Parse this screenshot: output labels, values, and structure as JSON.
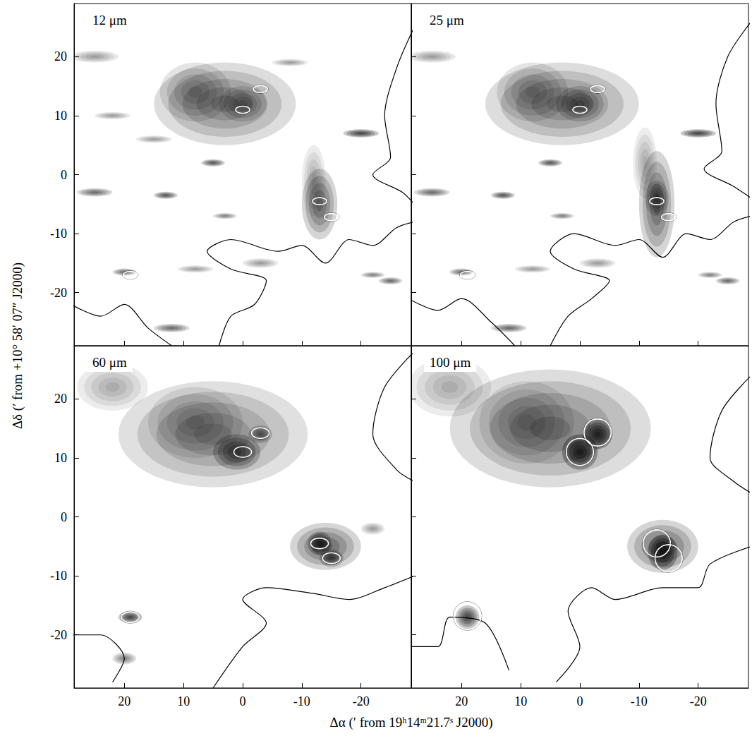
{
  "xlabel": "Δα (′ from 19ʰ14ᵐ21.7ˢ J2000)",
  "ylabel": "Δδ (′ from +10° 58′ 07″ J2000)",
  "chart_data": [
    {
      "type": "image",
      "title": "12 μm",
      "xlim": [
        28.5,
        -28.5
      ],
      "ylim": [
        -29,
        29
      ],
      "xticks": [
        20,
        10,
        0,
        -10,
        -20
      ],
      "yticks": [
        -20,
        -10,
        0,
        10,
        20
      ],
      "tick_labels": "y",
      "emission": [
        [
          3,
          12,
          12,
          7,
          0.45
        ],
        [
          8,
          14,
          6,
          5,
          0.35
        ],
        [
          0,
          12,
          4,
          3,
          0.4
        ],
        [
          -13,
          -5,
          3,
          6,
          0.55
        ],
        [
          -12,
          -1,
          2,
          6,
          0.25
        ],
        [
          5,
          2,
          2,
          0.6,
          0.6
        ],
        [
          13,
          -3.5,
          2,
          0.6,
          0.6
        ],
        [
          20,
          -16.5,
          2,
          0.6,
          0.5
        ],
        [
          -3,
          -15,
          3,
          0.8,
          0.3
        ],
        [
          -20,
          7,
          3,
          0.7,
          0.7
        ],
        [
          12,
          -26,
          3,
          0.7,
          0.5
        ],
        [
          25,
          -3,
          3,
          0.7,
          0.5
        ],
        [
          3,
          -7,
          2,
          0.5,
          0.4
        ],
        [
          -22,
          -17,
          2,
          0.5,
          0.4
        ],
        [
          8,
          -16,
          3,
          0.6,
          0.3
        ],
        [
          25,
          20,
          4,
          1,
          0.3
        ],
        [
          -25,
          -18,
          2,
          0.6,
          0.5
        ],
        [
          15,
          6,
          3,
          0.6,
          0.3
        ],
        [
          -8,
          19,
          3,
          0.6,
          0.3
        ],
        [
          22,
          10,
          3,
          0.6,
          0.3
        ]
      ],
      "sources": {
        "x": [
          -3,
          0,
          -13,
          -15,
          19
        ],
        "y": [
          14.5,
          11,
          -4.5,
          -7.2,
          -17
        ]
      },
      "source_size": [
        1.2,
        0.6
      ],
      "contours": [
        [
          [
            4,
            -29
          ],
          [
            2,
            -24
          ],
          [
            -2,
            -22
          ],
          [
            -4,
            -18
          ],
          [
            2,
            -16
          ],
          [
            6,
            -13
          ],
          [
            2,
            -11
          ],
          [
            -6,
            -13
          ],
          [
            -10,
            -12
          ],
          [
            -14,
            -15
          ],
          [
            -18,
            -11
          ],
          [
            -22,
            -12
          ],
          [
            -26,
            -9
          ],
          [
            -29,
            -8
          ]
        ],
        [
          [
            -29,
            25
          ],
          [
            -26,
            18
          ],
          [
            -24,
            10
          ],
          [
            -25,
            3
          ],
          [
            -22,
            0
          ],
          [
            -27,
            -3
          ],
          [
            -29,
            -5
          ]
        ],
        [
          [
            29,
            -22
          ],
          [
            24,
            -24
          ],
          [
            20,
            -22
          ],
          [
            16,
            -26
          ],
          [
            12,
            -29
          ]
        ]
      ]
    },
    {
      "type": "image",
      "title": "25 μm",
      "xlim": [
        28.5,
        -28.5
      ],
      "ylim": [
        -29,
        29
      ],
      "xticks": [
        20,
        10,
        0,
        -10,
        -20
      ],
      "yticks": [
        -20,
        -10,
        0,
        10,
        20
      ],
      "tick_labels": false,
      "emission": [
        [
          3,
          12,
          13,
          7,
          0.45
        ],
        [
          8,
          14,
          6,
          5,
          0.35
        ],
        [
          0,
          12,
          4,
          3,
          0.5
        ],
        [
          -13,
          -5,
          3,
          9,
          0.55
        ],
        [
          -13,
          -4,
          2,
          3,
          0.5
        ],
        [
          -11,
          2,
          2,
          6,
          0.25
        ],
        [
          5,
          2,
          2,
          0.6,
          0.6
        ],
        [
          13,
          -3.5,
          2,
          0.6,
          0.6
        ],
        [
          20,
          -16.5,
          2,
          0.6,
          0.5
        ],
        [
          -3,
          -15,
          3,
          0.8,
          0.3
        ],
        [
          -20,
          7,
          3,
          0.7,
          0.7
        ],
        [
          12,
          -26,
          3,
          0.7,
          0.5
        ],
        [
          25,
          -3,
          3,
          0.7,
          0.5
        ],
        [
          3,
          -7,
          2,
          0.5,
          0.4
        ],
        [
          -22,
          -17,
          2,
          0.5,
          0.4
        ],
        [
          8,
          -16,
          3,
          0.6,
          0.3
        ],
        [
          25,
          20,
          4,
          1,
          0.3
        ],
        [
          -25,
          -18,
          2,
          0.6,
          0.5
        ]
      ],
      "sources": {
        "x": [
          -3,
          0,
          -13,
          -15,
          19
        ],
        "y": [
          14.5,
          11,
          -4.5,
          -7.2,
          -17
        ]
      },
      "source_size": [
        1.2,
        0.6
      ],
      "contours": [
        [
          [
            5,
            -29
          ],
          [
            2,
            -24
          ],
          [
            -2,
            -21
          ],
          [
            -5,
            -18
          ],
          [
            1,
            -16
          ],
          [
            5,
            -13
          ],
          [
            1,
            -10
          ],
          [
            -6,
            -12
          ],
          [
            -10,
            -11
          ],
          [
            -14,
            -14
          ],
          [
            -18,
            -10
          ],
          [
            -22,
            -11
          ],
          [
            -26,
            -8
          ],
          [
            -29,
            -7
          ]
        ],
        [
          [
            -29,
            26
          ],
          [
            -25,
            20
          ],
          [
            -23,
            12
          ],
          [
            -24,
            4
          ],
          [
            -21,
            1
          ],
          [
            -26,
            -2
          ],
          [
            -29,
            -4
          ]
        ],
        [
          [
            29,
            -21
          ],
          [
            24,
            -23
          ],
          [
            20,
            -21
          ],
          [
            15,
            -25
          ],
          [
            11,
            -29
          ]
        ]
      ]
    },
    {
      "type": "image",
      "title": "60 μm",
      "xlim": [
        28.5,
        -28.5
      ],
      "ylim": [
        -29,
        29
      ],
      "xticks": [
        20,
        10,
        0,
        -10,
        -20
      ],
      "yticks": [
        -20,
        -10,
        0,
        10,
        20
      ],
      "emission": [
        [
          5,
          14,
          16,
          9,
          0.4
        ],
        [
          8,
          16,
          8,
          6,
          0.3
        ],
        [
          1,
          11,
          4,
          3,
          0.7
        ],
        [
          -3,
          14,
          2,
          1.5,
          0.5
        ],
        [
          -14,
          -5,
          6,
          4,
          0.55
        ],
        [
          -13,
          -4.5,
          2,
          2,
          0.8
        ],
        [
          -15,
          -7,
          2,
          1.5,
          0.6
        ],
        [
          19,
          -17,
          2,
          1,
          0.7
        ],
        [
          20,
          -24,
          2,
          1,
          0.4
        ],
        [
          -22,
          -2,
          2,
          1,
          0.3
        ],
        [
          22,
          22,
          6,
          4,
          0.25
        ]
      ],
      "sources": {
        "x": [
          -3,
          0,
          -13,
          -15,
          19
        ],
        "y": [
          14.2,
          11,
          -4.5,
          -7,
          -17
        ]
      },
      "source_size": [
        1.5,
        0.9
      ],
      "contours": [
        [
          [
            5,
            -29
          ],
          [
            0,
            -22
          ],
          [
            -4,
            -18
          ],
          [
            0,
            -14
          ],
          [
            -4,
            -12
          ],
          [
            -12,
            -13
          ],
          [
            -18,
            -14
          ],
          [
            -24,
            -12
          ],
          [
            -29,
            -10
          ]
        ],
        [
          [
            -29,
            28
          ],
          [
            -24,
            22
          ],
          [
            -22,
            14
          ],
          [
            -26,
            8
          ],
          [
            -29,
            6
          ]
        ],
        [
          [
            29,
            -20
          ],
          [
            24,
            -20
          ],
          [
            20,
            -24
          ],
          [
            22,
            -28
          ]
        ]
      ]
    },
    {
      "type": "image",
      "title": "100 μm",
      "xlim": [
        28.5,
        -28.5
      ],
      "ylim": [
        -29,
        29
      ],
      "xticks": [
        20,
        10,
        0,
        -10,
        -20
      ],
      "yticks": [
        -20,
        -10,
        0,
        10,
        20
      ],
      "tick_labels": "x",
      "emission": [
        [
          5,
          15,
          17,
          10,
          0.45
        ],
        [
          9,
          16,
          8,
          7,
          0.3
        ],
        [
          0,
          11,
          3,
          3,
          0.95
        ],
        [
          -3,
          14,
          2.5,
          2.5,
          0.9
        ],
        [
          -14,
          -5,
          6,
          4.5,
          0.55
        ],
        [
          -14,
          -6,
          2.5,
          3,
          0.95
        ],
        [
          19,
          -17,
          2,
          2,
          0.7
        ],
        [
          22,
          22,
          7,
          5,
          0.25
        ]
      ],
      "sources": {
        "x": [
          -3,
          0,
          -13,
          -15,
          19
        ],
        "y": [
          14.3,
          11,
          -4.5,
          -7,
          -16.8
        ]
      },
      "source_size": [
        2.3,
        2.3
      ],
      "contours": [
        [
          [
            -29,
            -5
          ],
          [
            -22,
            -8
          ],
          [
            -20,
            -12
          ],
          [
            -14,
            -12
          ],
          [
            -6,
            -14
          ],
          [
            -2,
            -12
          ],
          [
            2,
            -16
          ],
          [
            0,
            -22
          ],
          [
            4,
            -28
          ]
        ],
        [
          [
            -29,
            24
          ],
          [
            -24,
            18
          ],
          [
            -22,
            10
          ],
          [
            -26,
            6
          ],
          [
            -29,
            4
          ]
        ],
        [
          [
            29,
            -22
          ],
          [
            24,
            -22
          ],
          [
            22,
            -17
          ],
          [
            16,
            -18
          ],
          [
            12,
            -26
          ]
        ]
      ]
    }
  ]
}
